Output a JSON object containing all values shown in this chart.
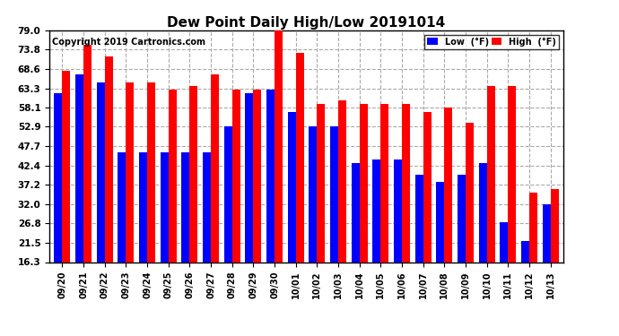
{
  "title": "Dew Point Daily High/Low 20191014",
  "copyright": "Copyright 2019 Cartronics.com",
  "categories": [
    "09/20",
    "09/21",
    "09/22",
    "09/23",
    "09/24",
    "09/25",
    "09/26",
    "09/27",
    "09/28",
    "09/29",
    "09/30",
    "10/01",
    "10/02",
    "10/03",
    "10/04",
    "10/05",
    "10/06",
    "10/07",
    "10/08",
    "10/09",
    "10/10",
    "10/11",
    "10/12",
    "10/13"
  ],
  "low": [
    62,
    67,
    65,
    46,
    46,
    46,
    46,
    46,
    53,
    62,
    63,
    57,
    53,
    53,
    43,
    44,
    44,
    40,
    38,
    40,
    43,
    27,
    22,
    32
  ],
  "high": [
    68,
    75,
    72,
    65,
    65,
    63,
    64,
    67,
    63,
    63,
    79,
    73,
    59,
    60,
    59,
    59,
    59,
    57,
    58,
    54,
    64,
    64,
    35,
    36
  ],
  "low_color": "#0000ff",
  "high_color": "#ff0000",
  "bg_color": "#ffffff",
  "grid_color": "#aaaaaa",
  "yticks": [
    16.3,
    21.5,
    26.8,
    32.0,
    37.2,
    42.4,
    47.7,
    52.9,
    58.1,
    63.3,
    68.6,
    73.8,
    79.0
  ],
  "ymin": 16.3,
  "ymax": 79.0,
  "legend_low_label": "Low  (°F)",
  "legend_high_label": "High  (°F)"
}
